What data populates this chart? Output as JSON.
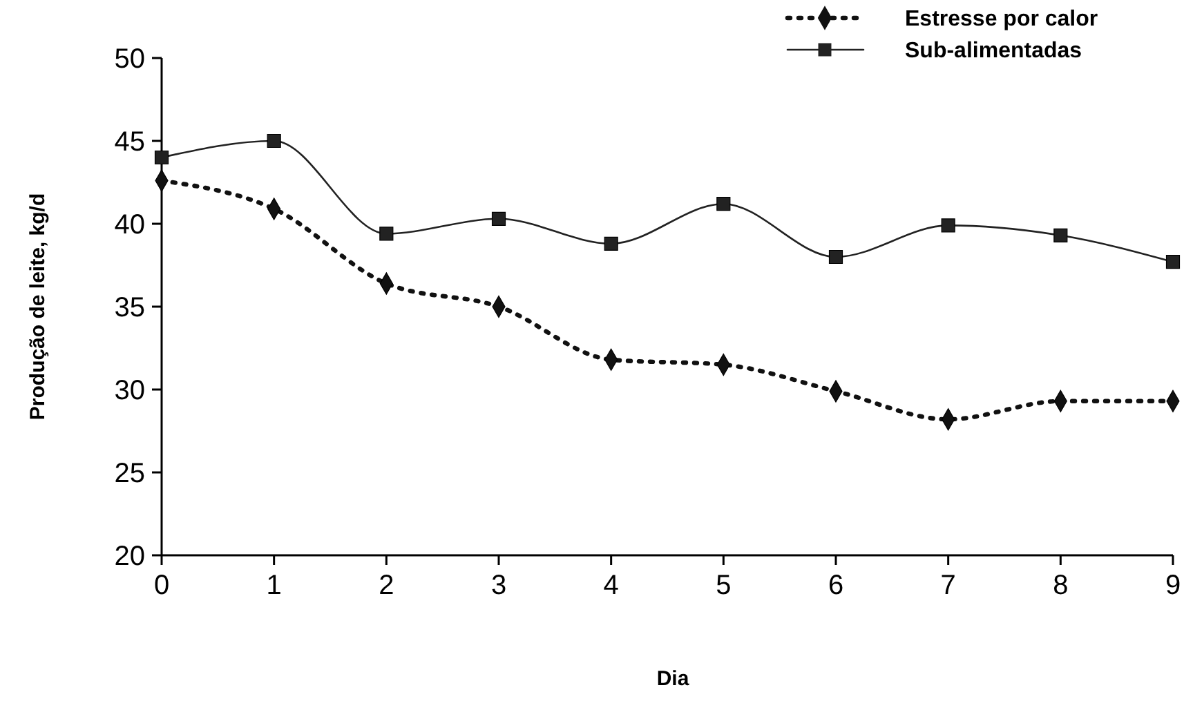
{
  "chart_data": {
    "type": "line",
    "xlabel": "Dia",
    "ylabel": "Produção de leite, kg/d",
    "x": [
      0,
      1,
      2,
      3,
      4,
      5,
      6,
      7,
      8,
      9
    ],
    "xlim": [
      0,
      9
    ],
    "xticks": [
      0,
      1,
      2,
      3,
      4,
      5,
      6,
      7,
      8,
      9
    ],
    "ylim": [
      20,
      50
    ],
    "yticks": [
      20,
      25,
      30,
      35,
      40,
      45,
      50
    ],
    "legend": "top right",
    "grid": false,
    "series": [
      {
        "name": "Estresse por calor",
        "color": "#111111",
        "marker": "diamond",
        "line_style": "dotted",
        "values": [
          42.6,
          40.9,
          36.4,
          35.0,
          31.8,
          31.5,
          29.9,
          28.2,
          29.3,
          29.3
        ]
      },
      {
        "name": "Sub-alimentadas",
        "color": "#222222",
        "marker": "square",
        "line_style": "solid",
        "values": [
          44.0,
          45.0,
          39.4,
          40.3,
          38.8,
          41.2,
          38.0,
          39.9,
          39.3,
          37.7
        ]
      }
    ]
  }
}
